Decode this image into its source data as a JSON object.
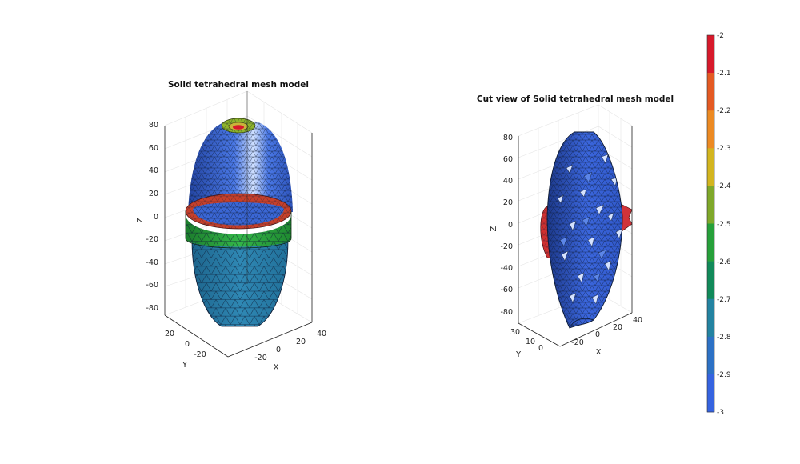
{
  "left": {
    "title": "Solid tetrahedral mesh model",
    "z_label": "Z",
    "y_label": "Y",
    "x_label": "X",
    "z_ticks": [
      "80",
      "60",
      "40",
      "20",
      "0",
      "-20",
      "-40",
      "-60",
      "-80"
    ],
    "y_ticks": [
      "20",
      "0",
      "-20"
    ],
    "x_ticks": [
      "-20",
      "0",
      "20",
      "40"
    ]
  },
  "right": {
    "title": "Cut view of Solid tetrahedral mesh model",
    "z_label": "Z",
    "y_label": "Y",
    "x_label": "X",
    "z_ticks": [
      "80",
      "60",
      "40",
      "20",
      "0",
      "-20",
      "-40",
      "-60",
      "-80"
    ],
    "y_ticks": [
      "30",
      "10",
      "0"
    ],
    "x_ticks": [
      "-20",
      "0",
      "20",
      "40"
    ]
  },
  "colorbar": {
    "labels": [
      "-2",
      "-2.1",
      "-2.2",
      "-2.3",
      "-2.4",
      "-2.5",
      "-2.6",
      "-2.7",
      "-2.8",
      "-2.9",
      "-3"
    ],
    "colors": [
      "#d7192b",
      "#e45a23",
      "#ec8a23",
      "#d3b51f",
      "#7fa82a",
      "#26a03a",
      "#118a5a",
      "#2383a1",
      "#2c71c5",
      "#3563e0"
    ]
  },
  "colors": {
    "upper_body": "#3b68d8",
    "lower_body": "#2b7fa8",
    "band_green": "#2aa03a",
    "band_red": "#c9402a",
    "top_ring": "#8bb22a",
    "cut_face": "#3a62d8"
  }
}
